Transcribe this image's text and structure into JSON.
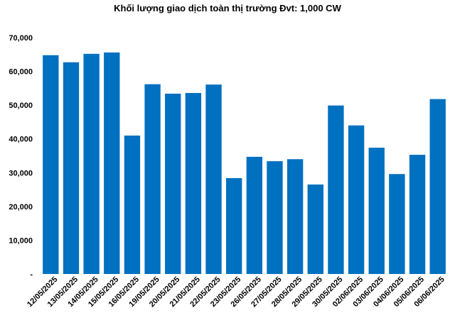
{
  "chart_data": {
    "type": "bar",
    "title": "Khối lượng giao dịch toàn thị trường Đvt: 1,000 CW",
    "xlabel": "",
    "ylabel": "",
    "categories": [
      "12/05/2025",
      "13/05/2025",
      "14/05/2025",
      "15/05/2025",
      "16/05/2025",
      "19/05/2025",
      "20/05/2025",
      "21/05/2025",
      "22/05/2025",
      "23/05/2025",
      "26/05/2025",
      "27/05/2025",
      "28/05/2025",
      "29/05/2025",
      "30/05/2025",
      "02/06/2025",
      "03/06/2025",
      "04/06/2025",
      "05/06/2025",
      "06/06/2025"
    ],
    "values": [
      64800,
      62700,
      65200,
      65600,
      41000,
      56200,
      53400,
      53600,
      56100,
      28400,
      34700,
      33400,
      34000,
      26500,
      49900,
      44000,
      37400,
      29600,
      35300,
      51800
    ],
    "ylim": [
      0,
      70000
    ],
    "yticks": [
      0,
      10000,
      20000,
      30000,
      40000,
      50000,
      60000,
      70000
    ],
    "ytick_labels": [
      "-",
      "10,000",
      "20,000",
      "30,000",
      "40,000",
      "50,000",
      "60,000",
      "70,000"
    ],
    "grid": false,
    "legend": "none",
    "bar_color": "#0070C0"
  }
}
